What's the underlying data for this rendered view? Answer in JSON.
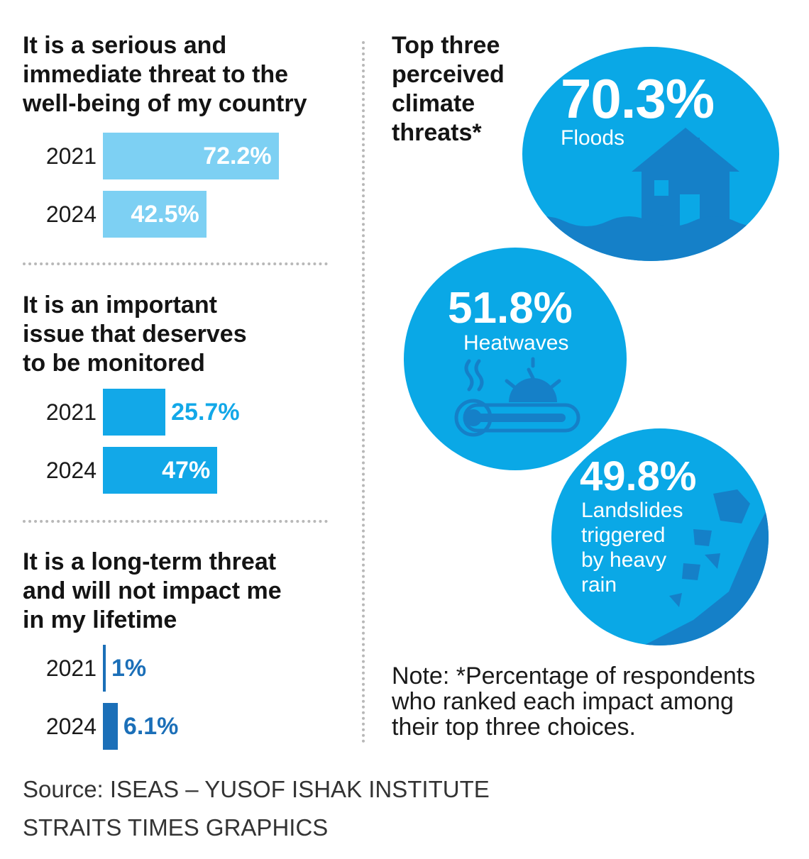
{
  "chart_data": [
    {
      "type": "bar",
      "title": "It is a serious and immediate threat to the well-being of my country",
      "categories": [
        "2021",
        "2024"
      ],
      "values": [
        72.2,
        42.5
      ],
      "value_labels": [
        "72.2%",
        "42.5%"
      ],
      "color": "#7dd0f3"
    },
    {
      "type": "bar",
      "title": "It is an important issue that deserves to be monitored",
      "categories": [
        "2021",
        "2024"
      ],
      "values": [
        25.7,
        47
      ],
      "value_labels": [
        "25.7%",
        "47%"
      ],
      "color": "#12a8e8"
    },
    {
      "type": "bar",
      "title": "It is a long-term threat and will not impact me in my lifetime",
      "categories": [
        "2021",
        "2024"
      ],
      "values": [
        1,
        6.1
      ],
      "value_labels": [
        "1%",
        "6.1%"
      ],
      "color": "#1b6fb8"
    },
    {
      "type": "bubble",
      "title": "Top three perceived climate threats*",
      "categories": [
        "Floods",
        "Heatwaves",
        "Landslides triggered by heavy rain"
      ],
      "values": [
        70.3,
        51.8,
        49.8
      ],
      "value_labels": [
        "70.3%",
        "51.8%",
        "49.8%"
      ],
      "icons": [
        "flooded-house-icon",
        "heatwave-thermometer-icon",
        "landslide-icon"
      ],
      "color": "#0aa8e6"
    }
  ],
  "titles": {
    "q1": [
      "It is a serious and",
      "immediate threat to the",
      "well-being of my country"
    ],
    "q2": [
      "It is an important",
      "issue that deserves",
      "to be monitored"
    ],
    "q3": [
      "It is a long-term threat",
      "and will not impact me",
      "in my lifetime"
    ],
    "right": [
      "Top three",
      "perceived",
      "climate",
      "threats*"
    ]
  },
  "circles": {
    "landslides_lines": [
      "Landslides",
      "triggered",
      "by heavy",
      "rain"
    ]
  },
  "note": [
    "Note: *Percentage of respondents",
    "who ranked each impact among",
    "their top three choices."
  ],
  "source": "Source: ISEAS – YUSOF ISHAK INSTITUTE",
  "credit": "STRAITS TIMES GRAPHICS",
  "colors": {
    "light": "#7dd0f3",
    "mid": "#12a8e8",
    "dark": "#1b6fb8",
    "circle": "#0aa8e6",
    "circle_dark": "#1580c8"
  }
}
